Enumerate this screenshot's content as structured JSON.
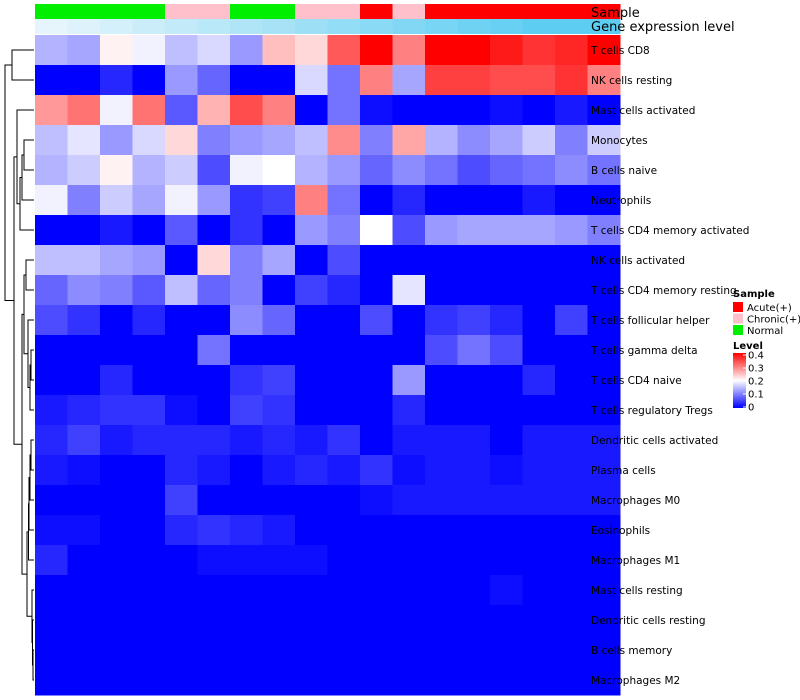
{
  "chart_data": {
    "type": "heatmap",
    "annotation_titles": [
      "Sample",
      "Gene expression level"
    ],
    "sample_groups": [
      "Normal",
      "Normal",
      "Normal",
      "Normal",
      "Chronic(+)",
      "Chronic(+)",
      "Normal",
      "Normal",
      "Chronic(+)",
      "Chronic(+)",
      "Acute(+)",
      "Chronic(+)",
      "Acute(+)",
      "Acute(+)",
      "Acute(+)",
      "Acute(+)",
      "Acute(+)",
      "Acute(+)"
    ],
    "expression_levels": [
      0.1,
      0.12,
      0.14,
      0.16,
      0.18,
      0.2,
      0.22,
      0.24,
      0.26,
      0.28,
      0.3,
      0.32,
      0.34,
      0.36,
      0.38,
      0.4,
      0.4,
      0.4
    ],
    "rows": [
      {
        "name": "T cells CD8",
        "values": [
          0.14,
          0.13,
          0.21,
          0.19,
          0.15,
          0.17,
          0.12,
          0.25,
          0.23,
          0.33,
          0.4,
          0.3,
          0.4,
          0.4,
          0.38,
          0.36,
          0.37,
          0.4
        ]
      },
      {
        "name": "NK cells resting",
        "values": [
          0.0,
          0.0,
          0.03,
          0.0,
          0.12,
          0.08,
          0.0,
          0.0,
          0.17,
          0.09,
          0.3,
          0.13,
          0.35,
          0.35,
          0.34,
          0.34,
          0.36,
          0.3
        ]
      },
      {
        "name": "Mast cells activated",
        "values": [
          0.28,
          0.31,
          0.19,
          0.31,
          0.07,
          0.26,
          0.34,
          0.3,
          0.0,
          0.09,
          0.01,
          0.0,
          0.0,
          0.0,
          0.01,
          0.0,
          0.02,
          0.0
        ]
      },
      {
        "name": "Monocytes",
        "values": [
          0.15,
          0.18,
          0.12,
          0.17,
          0.23,
          0.1,
          0.12,
          0.13,
          0.15,
          0.29,
          0.1,
          0.27,
          0.14,
          0.11,
          0.13,
          0.16,
          0.1,
          0.16
        ]
      },
      {
        "name": "B cells naive",
        "values": [
          0.14,
          0.16,
          0.21,
          0.14,
          0.16,
          0.06,
          0.19,
          0.2,
          0.14,
          0.12,
          0.08,
          0.11,
          0.09,
          0.06,
          0.08,
          0.09,
          0.11,
          0.09
        ]
      },
      {
        "name": "Neutrophils",
        "values": [
          0.19,
          0.1,
          0.16,
          0.13,
          0.19,
          0.12,
          0.04,
          0.05,
          0.3,
          0.09,
          0.0,
          0.03,
          0.0,
          0.0,
          0.0,
          0.02,
          0.0,
          0.0
        ]
      },
      {
        "name": "T cells CD4 memory activated",
        "values": [
          0.0,
          0.0,
          0.02,
          0.0,
          0.07,
          0.0,
          0.04,
          0.0,
          0.12,
          0.1,
          0.2,
          0.06,
          0.12,
          0.13,
          0.13,
          0.13,
          0.12,
          0.1
        ]
      },
      {
        "name": "NK cells activated",
        "values": [
          0.15,
          0.15,
          0.13,
          0.12,
          0.0,
          0.23,
          0.1,
          0.13,
          0.0,
          0.06,
          0.0,
          0.0,
          0.0,
          0.0,
          0.0,
          0.0,
          0.0,
          0.0
        ]
      },
      {
        "name": "T cells CD4 memory resting",
        "values": [
          0.08,
          0.11,
          0.1,
          0.07,
          0.15,
          0.08,
          0.1,
          0.0,
          0.05,
          0.03,
          0.0,
          0.18,
          0.0,
          0.0,
          0.0,
          0.0,
          0.0,
          0.0
        ]
      },
      {
        "name": "T cells follicular helper",
        "values": [
          0.06,
          0.04,
          0.0,
          0.03,
          0.0,
          0.0,
          0.11,
          0.08,
          0.0,
          0.0,
          0.06,
          0.0,
          0.04,
          0.05,
          0.03,
          0.0,
          0.05,
          0.0
        ]
      },
      {
        "name": "T cells gamma delta",
        "values": [
          0.0,
          0.0,
          0.0,
          0.0,
          0.0,
          0.09,
          0.0,
          0.0,
          0.0,
          0.0,
          0.0,
          0.0,
          0.06,
          0.09,
          0.06,
          0.0,
          0.0,
          0.0
        ]
      },
      {
        "name": "T cells CD4 naive",
        "values": [
          0.0,
          0.0,
          0.03,
          0.0,
          0.0,
          0.0,
          0.04,
          0.05,
          0.0,
          0.0,
          0.0,
          0.12,
          0.0,
          0.0,
          0.0,
          0.03,
          0.0,
          0.0
        ]
      },
      {
        "name": "T cells regulatory  Tregs",
        "values": [
          0.02,
          0.03,
          0.04,
          0.04,
          0.01,
          0.0,
          0.05,
          0.04,
          0.0,
          0.0,
          0.0,
          0.03,
          0.0,
          0.0,
          0.0,
          0.0,
          0.0,
          0.0
        ]
      },
      {
        "name": "Dendritic cells activated",
        "values": [
          0.03,
          0.05,
          0.02,
          0.03,
          0.03,
          0.03,
          0.02,
          0.03,
          0.02,
          0.04,
          0.0,
          0.02,
          0.02,
          0.02,
          0.0,
          0.02,
          0.02,
          0.02
        ]
      },
      {
        "name": "Plasma cells",
        "values": [
          0.02,
          0.01,
          0.0,
          0.0,
          0.03,
          0.02,
          0.0,
          0.02,
          0.03,
          0.02,
          0.04,
          0.01,
          0.02,
          0.02,
          0.01,
          0.02,
          0.02,
          0.02
        ]
      },
      {
        "name": "Macrophages M0",
        "values": [
          0.0,
          0.0,
          0.0,
          0.0,
          0.05,
          0.0,
          0.0,
          0.0,
          0.0,
          0.0,
          0.01,
          0.02,
          0.02,
          0.02,
          0.02,
          0.02,
          0.02,
          0.02
        ]
      },
      {
        "name": "Eosinophils",
        "values": [
          0.01,
          0.01,
          0.0,
          0.0,
          0.03,
          0.04,
          0.03,
          0.02,
          0.0,
          0.0,
          0.0,
          0.0,
          0.0,
          0.0,
          0.0,
          0.0,
          0.0,
          0.0
        ]
      },
      {
        "name": "Macrophages M1",
        "values": [
          0.03,
          0.0,
          0.0,
          0.0,
          0.0,
          0.01,
          0.01,
          0.01,
          0.01,
          0.0,
          0.0,
          0.0,
          0.0,
          0.0,
          0.0,
          0.0,
          0.0,
          0.0
        ]
      },
      {
        "name": "Mast cells resting",
        "values": [
          0.0,
          0.0,
          0.0,
          0.0,
          0.0,
          0.0,
          0.0,
          0.0,
          0.0,
          0.0,
          0.0,
          0.0,
          0.0,
          0.0,
          0.01,
          0.0,
          0.0,
          0.0
        ]
      },
      {
        "name": "Dendritic cells resting",
        "values": [
          0.0,
          0.0,
          0.0,
          0.0,
          0.0,
          0.0,
          0.0,
          0.0,
          0.0,
          0.0,
          0.0,
          0.0,
          0.0,
          0.0,
          0.0,
          0.0,
          0.0,
          0.0
        ]
      },
      {
        "name": "B cells memory",
        "values": [
          0.0,
          0.0,
          0.0,
          0.0,
          0.0,
          0.0,
          0.0,
          0.0,
          0.0,
          0.0,
          0.0,
          0.0,
          0.0,
          0.0,
          0.0,
          0.0,
          0.0,
          0.0
        ]
      },
      {
        "name": "Macrophages M2",
        "values": [
          0.0,
          0.0,
          0.0,
          0.0,
          0.0,
          0.0,
          0.0,
          0.0,
          0.0,
          0.0,
          0.0,
          0.0,
          0.0,
          0.0,
          0.0,
          0.0,
          0.0,
          0.0
        ]
      }
    ],
    "color_scale": {
      "min": 0,
      "max": 0.4,
      "colors": [
        "#0000ff",
        "#ffffff",
        "#ff0000"
      ],
      "mid": 0.2
    },
    "legend": {
      "sample_title": "Sample",
      "sample_entries": [
        {
          "label": "Acute(+)",
          "color": "#ff0000"
        },
        {
          "label": "Chronic(+)",
          "color": "#ffc0cb"
        },
        {
          "label": "Normal",
          "color": "#00ee00"
        }
      ],
      "level_title": "Level",
      "level_ticks": [
        "0.4",
        "0.3",
        "0.2",
        "0.1",
        "0"
      ],
      "placement": "right"
    }
  }
}
